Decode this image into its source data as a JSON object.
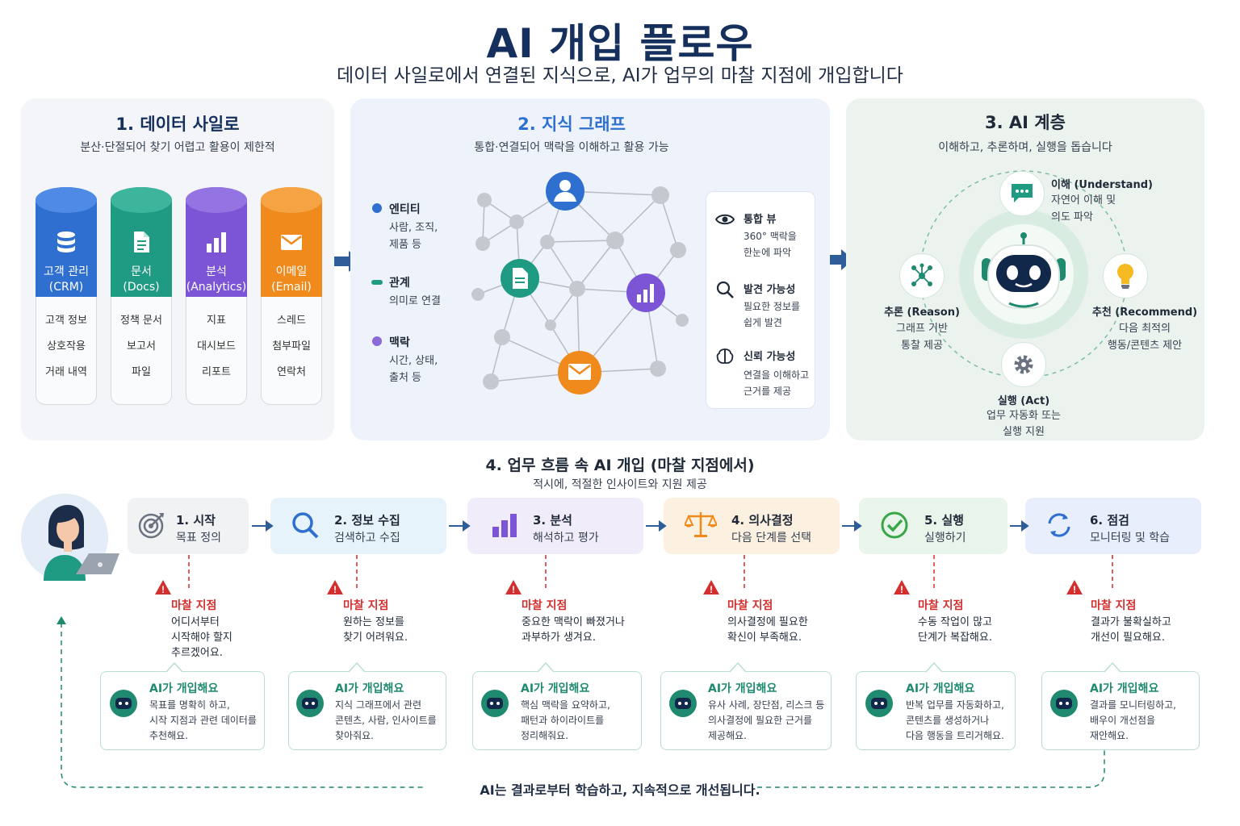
{
  "title": "AI 개입 플로우",
  "subtitle": "데이터 사일로에서 연결된 지식으로, AI가 업무의 마찰 지점에 개입합니다",
  "colors": {
    "navy": "#15305c",
    "blue": "#2f6fd0",
    "teal": "#1f8a70",
    "purple": "#7b55d6",
    "orange": "#f08a1c",
    "red": "#d32f2f"
  },
  "panel1": {
    "title": "1. 데이터 사일로",
    "subtitle": "분산·단절되어 찾기 어렵고 활용이 제한적",
    "silos": [
      {
        "icon": "database-icon",
        "label1": "고객 관리",
        "label2": "(CRM)",
        "color": "#2f6fd0",
        "items": [
          "고객 정보",
          "상호작용",
          "거래 내역"
        ]
      },
      {
        "icon": "document-icon",
        "label1": "문서",
        "label2": "(Docs)",
        "color": "#1f9a83",
        "items": [
          "정책 문서",
          "보고서",
          "파일"
        ]
      },
      {
        "icon": "bar-chart-icon",
        "label1": "분석",
        "label2": "(Analytics)",
        "color": "#7b55d6",
        "items": [
          "지표",
          "대시보드",
          "리포트"
        ]
      },
      {
        "icon": "mail-icon",
        "label1": "이메일",
        "label2": "(Email)",
        "color": "#f08a1c",
        "items": [
          "스레드",
          "첨부파일",
          "연락처"
        ]
      }
    ]
  },
  "panel2": {
    "title": "2. 지식 그래프",
    "subtitle": "통합·연결되어 맥락을 이해하고 활용 가능",
    "legend": [
      {
        "title": "엔티티",
        "desc1": "사람, 조직,",
        "desc2": "제품 등",
        "color": "#2f6fd0"
      },
      {
        "title": "관계",
        "desc1": "의미로 연결",
        "desc2": "",
        "color": "#1f9a83"
      },
      {
        "title": "맥락",
        "desc1": "시간, 상태,",
        "desc2": "출처 등",
        "color": "#8b6ad8"
      }
    ],
    "views": [
      {
        "icon": "eye-icon",
        "title": "통합 뷰",
        "desc1": "360° 맥락을",
        "desc2": "한눈에 파악"
      },
      {
        "icon": "search-icon",
        "title": "발견 가능성",
        "desc1": "필요한 정보를",
        "desc2": "쉽게 발견"
      },
      {
        "icon": "brain-icon",
        "title": "신뢰 가능성",
        "desc1": "연결을 이해하고",
        "desc2": "근거를 제공"
      }
    ]
  },
  "panel3": {
    "title": "3. AI 계층",
    "subtitle": "이해하고, 추론하며, 실행을 돕습니다",
    "understand": {
      "title": "이해 (Understand)",
      "desc1": "자연어 이해 및",
      "desc2": "의도 파악"
    },
    "reason": {
      "title": "추론 (Reason)",
      "desc1": "그래프 기반",
      "desc2": "통찰 제공"
    },
    "recommend": {
      "title": "추천 (Recommend)",
      "desc1": "다음 최적의",
      "desc2": "행동/콘텐츠 제안"
    },
    "act": {
      "title": "실행 (Act)",
      "desc1": "업무 자동화 또는",
      "desc2": "실행 지원"
    }
  },
  "section4": {
    "title": "4. 업무 흐름 속 AI 개입 (마찰 지점에서)",
    "subtitle": "적시에, 적절한 인사이트와 지원 제공",
    "friction_label": "마찰 지점",
    "ai_label": "AI가 개입해요",
    "steps": [
      {
        "icon": "target-icon",
        "title": "1. 시작",
        "desc": "목표 정의",
        "bg": "#f1f2f4",
        "friction": [
          "어디서부터",
          "시작해야 할지",
          "추르겠어요."
        ],
        "ai": [
          "목표를 명확히 하고,",
          "시작 지점과 관련 데이터를",
          "추천해요."
        ]
      },
      {
        "icon": "search-icon",
        "title": "2. 정보 수집",
        "desc": "검색하고 수집",
        "bg": "#e6f3fb",
        "friction": [
          "원하는 정보를",
          "찾기 어려워요."
        ],
        "ai": [
          "지식 그래프에서 관련",
          "콘텐츠, 사람, 인사이트를",
          "찾아줘요."
        ]
      },
      {
        "icon": "bar-chart-icon",
        "title": "3. 분석",
        "desc": "해석하고 평가",
        "bg": "#f0ecfa",
        "friction": [
          "중요한 맥락이 빠졌거나",
          "과부하가 생겨요."
        ],
        "ai": [
          "핵심 맥락을 요약하고,",
          "패턴과 하이라이트를",
          "정리해줘요."
        ]
      },
      {
        "icon": "scale-icon",
        "title": "4. 의사결정",
        "desc": "다음 단계를 선택",
        "bg": "#fcf1e1",
        "friction": [
          "의사결정에 필요한",
          "확신이 부족해요."
        ],
        "ai": [
          "유사 사례, 장단점, 리스크 등",
          "의사결정에 필요한 근거를",
          "제공해요."
        ]
      },
      {
        "icon": "check-circle-icon",
        "title": "5. 실행",
        "desc": "실행하기",
        "bg": "#e9f4ea",
        "friction": [
          "수동 작업이 많고",
          "단계가 복잡해요."
        ],
        "ai": [
          "반복 업무를 자동화하고,",
          "콘텐츠를 생성하거나",
          "다음 행동을 트리거해요."
        ]
      },
      {
        "icon": "refresh-icon",
        "title": "6. 점검",
        "desc": "모니터링 및 학습",
        "bg": "#e8eefb",
        "friction": [
          "결과가 불확실하고",
          "개선이 필요해요."
        ],
        "ai": [
          "결과를 모니터링하고,",
          "배우이 개선점을",
          "재안해요."
        ]
      }
    ],
    "loop": "AI는 결과로부터 학습하고, 지속적으로 개선됩니다."
  }
}
